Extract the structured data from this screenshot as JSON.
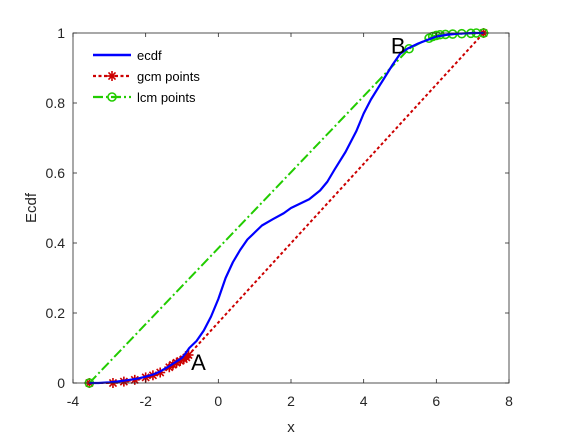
{
  "chart_data": {
    "type": "line",
    "title": "",
    "xlabel": "x",
    "ylabel": "Ecdf",
    "xlim": [
      -4,
      8
    ],
    "ylim": [
      0,
      1
    ],
    "xticks": [
      -4,
      -2,
      0,
      2,
      4,
      6,
      8
    ],
    "yticks": [
      0,
      0.2,
      0.4,
      0.6,
      0.8,
      1
    ],
    "grid": false,
    "legend_position": "top-left",
    "series": [
      {
        "name": "ecdf",
        "color": "#0000ff",
        "style": "solid",
        "x": [
          -3.55,
          -3.3,
          -3.0,
          -2.8,
          -2.5,
          -2.2,
          -2.0,
          -1.8,
          -1.6,
          -1.4,
          -1.2,
          -1.0,
          -0.9,
          -0.8,
          -0.6,
          -0.4,
          -0.2,
          0.0,
          0.2,
          0.4,
          0.6,
          0.8,
          1.0,
          1.2,
          1.5,
          1.8,
          2.0,
          2.2,
          2.5,
          2.8,
          3.0,
          3.2,
          3.5,
          3.8,
          4.0,
          4.2,
          4.5,
          4.8,
          5.0,
          5.2,
          5.5,
          5.8,
          6.0,
          6.3,
          6.6,
          7.0,
          7.3
        ],
        "y": [
          0.0,
          0.0,
          0.002,
          0.004,
          0.008,
          0.013,
          0.018,
          0.024,
          0.033,
          0.045,
          0.058,
          0.072,
          0.085,
          0.1,
          0.12,
          0.15,
          0.19,
          0.24,
          0.3,
          0.345,
          0.38,
          0.41,
          0.43,
          0.45,
          0.468,
          0.485,
          0.5,
          0.51,
          0.525,
          0.55,
          0.575,
          0.61,
          0.66,
          0.72,
          0.77,
          0.81,
          0.86,
          0.91,
          0.94,
          0.955,
          0.97,
          0.982,
          0.99,
          0.995,
          0.998,
          1.0,
          1.0
        ]
      },
      {
        "name": "gcm points",
        "color": "#cc0000",
        "style": "dotted",
        "marker": "star",
        "x": [
          -3.55,
          -2.9,
          -2.6,
          -2.3,
          -2.0,
          -1.8,
          -1.6,
          -1.35,
          -1.25,
          -1.15,
          -1.05,
          -0.95,
          -0.88,
          -0.82,
          7.3
        ],
        "y": [
          0.0,
          0.0,
          0.004,
          0.009,
          0.016,
          0.022,
          0.03,
          0.045,
          0.052,
          0.058,
          0.063,
          0.068,
          0.073,
          0.08,
          1.0
        ]
      },
      {
        "name": "lcm points",
        "color": "#22cc00",
        "style": "dash-dot",
        "marker": "circle",
        "x": [
          -3.55,
          5.25,
          5.8,
          5.9,
          6.0,
          6.1,
          6.25,
          6.45,
          6.7,
          6.95,
          7.1,
          7.3
        ],
        "y": [
          0.0,
          0.955,
          0.985,
          0.99,
          0.993,
          0.995,
          0.996,
          0.997,
          0.998,
          0.999,
          1.0,
          1.0
        ]
      }
    ],
    "annotations": [
      {
        "text": "A",
        "x": -0.75,
        "y": 0.06
      },
      {
        "text": "B",
        "x": 4.75,
        "y": 0.965
      }
    ]
  }
}
